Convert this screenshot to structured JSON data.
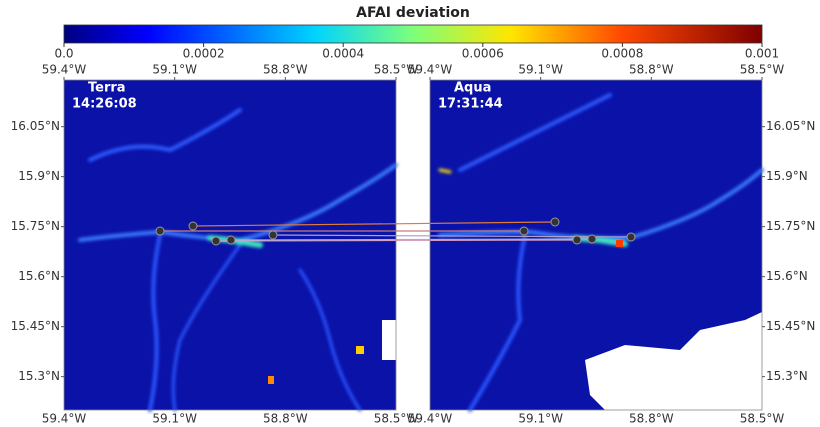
{
  "colorbar": {
    "title": "AFAI deviation",
    "lim": [
      0,
      0.001
    ],
    "ticks": [
      {
        "value": 0,
        "label": "0.0"
      },
      0.0002,
      0.0004,
      0.0006,
      0.0008,
      0.001
    ]
  },
  "panels": [
    {
      "label": "Terra",
      "time": "14:26:08",
      "xlim": [
        -59.4,
        -58.5
      ],
      "ylim": [
        15.2,
        16.19
      ],
      "xticks": [
        {
          "value": -59.4,
          "label": "59.4°W"
        },
        {
          "value": -59.1,
          "label": "59.1°W"
        },
        {
          "value": -58.8,
          "label": "58.8°W"
        },
        {
          "value": -58.5,
          "label": "58.5°W"
        }
      ],
      "yticks": [
        {
          "value": 16.05,
          "label": "16.05°N"
        },
        {
          "value": 15.9,
          "label": "15.9°N"
        },
        {
          "value": 15.75,
          "label": "15.75°N"
        },
        {
          "value": 15.6,
          "label": "15.6°N"
        },
        {
          "value": 15.45,
          "label": "15.45°N"
        },
        {
          "value": 15.3,
          "label": "15.3°N"
        }
      ]
    },
    {
      "label": "Aqua",
      "time": "17:31:44",
      "xlim": [
        -59.4,
        -58.5
      ],
      "ylim": [
        15.2,
        16.19
      ],
      "xticks": [
        {
          "value": -59.4,
          "label": "59.4°W"
        },
        {
          "value": -59.1,
          "label": "59.1°W"
        },
        {
          "value": -58.8,
          "label": "58.8°W"
        },
        {
          "value": -58.5,
          "label": "58.5°W"
        }
      ],
      "yticks": [
        {
          "value": 16.05,
          "label": "16.05°N"
        },
        {
          "value": 15.9,
          "label": "15.9°N"
        },
        {
          "value": 15.75,
          "label": "15.75°N"
        },
        {
          "value": 15.6,
          "label": "15.6°N"
        },
        {
          "value": 15.45,
          "label": "15.45°N"
        },
        {
          "value": 15.3,
          "label": "15.3°N"
        }
      ]
    }
  ]
}
